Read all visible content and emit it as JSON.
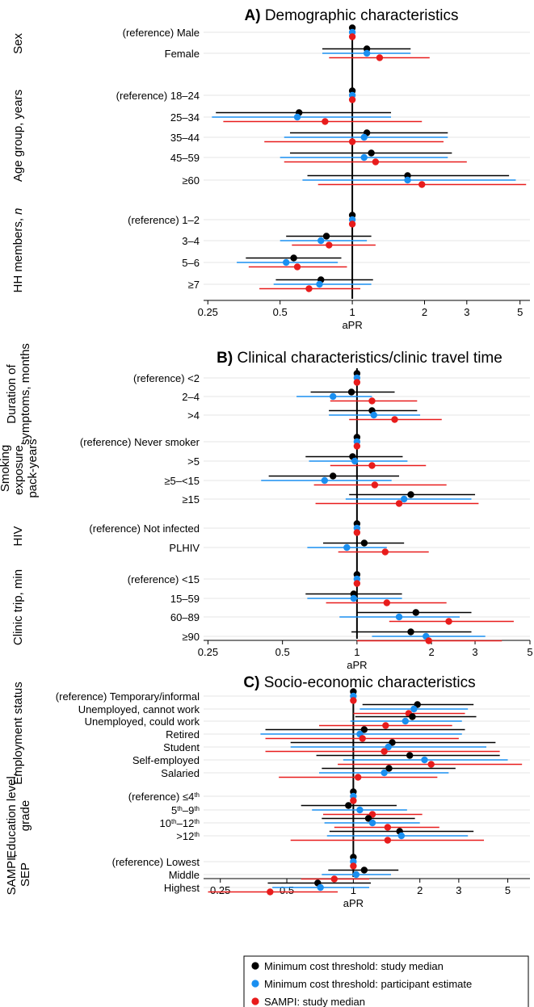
{
  "legend": {
    "items": [
      {
        "label": "Minimum cost threshold: study median",
        "color": "#000000"
      },
      {
        "label": "Minimum cost threshold: participant estimate",
        "color": "#1a8ff0"
      },
      {
        "label": "SAMPI: study median",
        "color": "#e81c1c"
      }
    ]
  },
  "chart_data": [
    {
      "type": "forest",
      "panel_letter": "A)",
      "title": "Demographic characteristics",
      "xlabel": "aPR",
      "x_scale": "log",
      "reference_value": 1,
      "xlim": [
        0.24,
        5.5
      ],
      "xticks": [
        0.25,
        0.5,
        1,
        2,
        3,
        5
      ],
      "xtick_labels": [
        "0.25",
        "0.5",
        "1",
        "2",
        "3",
        "5"
      ],
      "series_names": [
        "Minimum cost threshold: study median",
        "Minimum cost threshold: participant estimate",
        "SAMPI: study median"
      ],
      "groups": [
        {
          "label": "Sex",
          "rows": [
            {
              "label": "(reference) Male",
              "estimates": [
                [
                  1,
                  1,
                  1
                ],
                [
                  1,
                  1,
                  1
                ],
                [
                  1,
                  1,
                  1
                ]
              ]
            },
            {
              "label": "Female",
              "estimates": [
                [
                  1.15,
                  0.75,
                  1.75
                ],
                [
                  1.15,
                  0.75,
                  1.75
                ],
                [
                  1.3,
                  0.8,
                  2.1
                ]
              ]
            }
          ]
        },
        {
          "label": "Age group, years",
          "rows": [
            {
              "label": "(reference) 18–24",
              "estimates": [
                [
                  1,
                  1,
                  1
                ],
                [
                  1,
                  1,
                  1
                ],
                [
                  1,
                  1,
                  1
                ]
              ]
            },
            {
              "label": "25–34",
              "estimates": [
                [
                  0.6,
                  0.27,
                  1.45
                ],
                [
                  0.59,
                  0.26,
                  1.45
                ],
                [
                  0.77,
                  0.29,
                  1.95
                ]
              ]
            },
            {
              "label": "35–44",
              "estimates": [
                [
                  1.15,
                  0.55,
                  2.5
                ],
                [
                  1.12,
                  0.52,
                  2.5
                ],
                [
                  1.0,
                  0.43,
                  2.4
                ]
              ]
            },
            {
              "label": "45–59",
              "estimates": [
                [
                  1.2,
                  0.55,
                  2.6
                ],
                [
                  1.12,
                  0.5,
                  2.5
                ],
                [
                  1.25,
                  0.52,
                  3.0
                ]
              ]
            },
            {
              "label": "≥60",
              "estimates": [
                [
                  1.7,
                  0.65,
                  4.5
                ],
                [
                  1.7,
                  0.62,
                  4.8
                ],
                [
                  1.95,
                  0.72,
                  5.3
                ]
              ]
            }
          ]
        },
        {
          "label": "HH members, n",
          "rows": [
            {
              "label": "(reference) 1–2",
              "estimates": [
                [
                  1,
                  1,
                  1
                ],
                [
                  1,
                  1,
                  1
                ],
                [
                  1,
                  1,
                  1
                ]
              ]
            },
            {
              "label": "3–4",
              "estimates": [
                [
                  0.78,
                  0.53,
                  1.2
                ],
                [
                  0.74,
                  0.5,
                  1.15
                ],
                [
                  0.8,
                  0.56,
                  1.25
                ]
              ]
            },
            {
              "label": "5–6",
              "estimates": [
                [
                  0.57,
                  0.36,
                  0.9
                ],
                [
                  0.53,
                  0.33,
                  0.87
                ],
                [
                  0.59,
                  0.37,
                  0.95
                ]
              ]
            },
            {
              "label": "≥7",
              "estimates": [
                [
                  0.74,
                  0.48,
                  1.22
                ],
                [
                  0.73,
                  0.47,
                  1.2
                ],
                [
                  0.66,
                  0.41,
                  1.08
                ]
              ]
            }
          ]
        }
      ]
    },
    {
      "type": "forest",
      "panel_letter": "B)",
      "title": "Clinical characteristics/clinic travel time",
      "xlabel": "aPR",
      "x_scale": "log",
      "reference_value": 1,
      "xlim": [
        0.24,
        5.0
      ],
      "xticks": [
        0.25,
        0.5,
        1,
        2,
        3,
        5
      ],
      "xtick_labels": [
        "0.25",
        "0.5",
        "1",
        "2",
        "3",
        "5"
      ],
      "series_names": [
        "Minimum cost threshold: study median",
        "Minimum cost threshold: participant estimate",
        "SAMPI: study median"
      ],
      "groups": [
        {
          "label": "Duration of symptoms, months",
          "rows": [
            {
              "label": "(reference) <2",
              "estimates": [
                [
                  1,
                  1,
                  1
                ],
                [
                  1,
                  1,
                  1
                ],
                [
                  1,
                  1,
                  1
                ]
              ]
            },
            {
              "label": "2–4",
              "estimates": [
                [
                  0.95,
                  0.65,
                  1.42
                ],
                [
                  0.8,
                  0.57,
                  1.15
                ],
                [
                  1.15,
                  0.78,
                  1.75
                ]
              ]
            },
            {
              "label": ">4",
              "estimates": [
                [
                  1.15,
                  0.77,
                  1.75
                ],
                [
                  1.17,
                  0.77,
                  1.8
                ],
                [
                  1.42,
                  0.93,
                  2.2
                ]
              ]
            }
          ]
        },
        {
          "label": "Smoking exposure, pack-years",
          "rows": [
            {
              "label": "(reference) Never smoker",
              "estimates": [
                [
                  1,
                  1,
                  1
                ],
                [
                  1,
                  1,
                  1
                ],
                [
                  1,
                  1,
                  1
                ]
              ]
            },
            {
              "label": ">5",
              "estimates": [
                [
                  0.96,
                  0.62,
                  1.53
                ],
                [
                  0.98,
                  0.64,
                  1.6
                ],
                [
                  1.15,
                  0.78,
                  1.9
                ]
              ]
            },
            {
              "label": "≥5–<15",
              "estimates": [
                [
                  0.8,
                  0.44,
                  1.48
                ],
                [
                  0.74,
                  0.41,
                  1.38
                ],
                [
                  1.18,
                  0.67,
                  2.3
                ]
              ]
            },
            {
              "label": "≥15",
              "estimates": [
                [
                  1.65,
                  0.93,
                  3.0
                ],
                [
                  1.55,
                  0.9,
                  2.9
                ],
                [
                  1.48,
                  0.68,
                  3.1
                ]
              ]
            }
          ]
        },
        {
          "label": "HIV",
          "rows": [
            {
              "label": "(reference) Not infected",
              "estimates": [
                [
                  1,
                  1,
                  1
                ],
                [
                  1,
                  1,
                  1
                ],
                [
                  1,
                  1,
                  1
                ]
              ]
            },
            {
              "label": "PLHIV",
              "estimates": [
                [
                  1.07,
                  0.73,
                  1.55
                ],
                [
                  0.91,
                  0.63,
                  1.32
                ],
                [
                  1.3,
                  0.84,
                  1.95
                ]
              ]
            }
          ]
        },
        {
          "label": "Clinic trip, min",
          "rows": [
            {
              "label": "(reference) <15",
              "estimates": [
                [
                  1,
                  1,
                  1
                ],
                [
                  1,
                  1,
                  1
                ],
                [
                  1,
                  1,
                  1
                ]
              ]
            },
            {
              "label": "15–59",
              "estimates": [
                [
                  0.97,
                  0.62,
                  1.52
                ],
                [
                  0.97,
                  0.63,
                  1.52
                ],
                [
                  1.32,
                  0.75,
                  2.3
                ]
              ]
            },
            {
              "label": "60–89",
              "estimates": [
                [
                  1.73,
                  1.0,
                  2.9
                ],
                [
                  1.48,
                  0.85,
                  2.6
                ],
                [
                  2.35,
                  1.35,
                  4.3
                ]
              ]
            },
            {
              "label": "≥90",
              "estimates": [
                [
                  1.65,
                  0.95,
                  2.9
                ],
                [
                  1.9,
                  1.15,
                  3.3
                ],
                [
                  1.95,
                  1.0,
                  3.85
                ]
              ]
            }
          ]
        }
      ]
    },
    {
      "type": "forest",
      "panel_letter": "C)",
      "title": "Socio-economic characteristics",
      "xlabel": "aPR",
      "x_scale": "log",
      "reference_value": 1,
      "xlim": [
        0.21,
        6.3
      ],
      "xticks": [
        0.25,
        0.5,
        1,
        2,
        3,
        5
      ],
      "xtick_labels": [
        "0.25",
        "0.5",
        "1",
        "2",
        "3",
        "5"
      ],
      "series_names": [
        "Minimum cost threshold: study median",
        "Minimum cost threshold: participant estimate",
        "SAMPI: study median"
      ],
      "groups": [
        {
          "label": "Employment status",
          "rows": [
            {
              "label": "(reference) Temporary/informal",
              "estimates": [
                [
                  1,
                  1,
                  1
                ],
                [
                  1,
                  1,
                  1
                ],
                [
                  1,
                  1,
                  1
                ]
              ]
            },
            {
              "label": "Unemployed, cannot work",
              "estimates": [
                [
                  1.95,
                  1.1,
                  3.5
                ],
                [
                  1.88,
                  1.07,
                  3.3
                ],
                [
                  1.78,
                  1.0,
                  3.2
                ]
              ]
            },
            {
              "label": "Unemployed, could work",
              "estimates": [
                [
                  1.85,
                  1.02,
                  3.6
                ],
                [
                  1.72,
                  0.97,
                  3.1
                ],
                [
                  1.4,
                  0.7,
                  2.8
                ]
              ]
            },
            {
              "label": "Retired",
              "estimates": [
                [
                  1.12,
                  0.4,
                  3.2
                ],
                [
                  1.07,
                  0.38,
                  3.1
                ],
                [
                  1.1,
                  0.4,
                  3.0
                ]
              ]
            },
            {
              "label": "Student",
              "estimates": [
                [
                  1.5,
                  0.52,
                  4.4
                ],
                [
                  1.44,
                  0.52,
                  4.0
                ],
                [
                  1.38,
                  0.4,
                  4.6
                ]
              ]
            },
            {
              "label": "Self-employed",
              "estimates": [
                [
                  1.8,
                  0.68,
                  4.6
                ],
                [
                  2.1,
                  0.9,
                  5.0
                ],
                [
                  2.25,
                  0.85,
                  5.8
                ]
              ]
            },
            {
              "label": "Salaried",
              "estimates": [
                [
                  1.45,
                  0.72,
                  2.9
                ],
                [
                  1.38,
                  0.7,
                  2.7
                ],
                [
                  1.05,
                  0.46,
                  2.4
                ]
              ]
            }
          ]
        },
        {
          "label": "Education level, grade",
          "rows": [
            {
              "label": "(reference) ≤4th",
              "estimates": [
                [
                  1,
                  1,
                  1
                ],
                [
                  1,
                  1,
                  1
                ],
                [
                  1,
                  1,
                  1
                ]
              ]
            },
            {
              "label": "5th–9th",
              "estimates": [
                [
                  0.95,
                  0.58,
                  1.57
                ],
                [
                  1.07,
                  0.65,
                  1.75
                ],
                [
                  1.22,
                  0.73,
                  2.05
                ]
              ]
            },
            {
              "label": "10th–12th",
              "estimates": [
                [
                  1.17,
                  0.72,
                  1.9
                ],
                [
                  1.22,
                  0.74,
                  2.0
                ],
                [
                  1.43,
                  0.82,
                  2.45
                ]
              ]
            },
            {
              "label": ">12th",
              "estimates": [
                [
                  1.62,
                  0.78,
                  3.5
                ],
                [
                  1.65,
                  0.76,
                  3.3
                ],
                [
                  1.43,
                  0.52,
                  3.9
                ]
              ]
            }
          ]
        },
        {
          "label": "SAMPI, SEP",
          "rows": [
            {
              "label": "(reference) Lowest",
              "estimates": [
                [
                  1,
                  1,
                  1
                ],
                [
                  1,
                  1,
                  1
                ],
                [
                  1,
                  1,
                  1
                ]
              ]
            },
            {
              "label": "Middle",
              "estimates": [
                [
                  1.12,
                  0.77,
                  1.6
                ],
                [
                  1.03,
                  0.72,
                  1.48
                ],
                [
                  0.82,
                  0.58,
                  1.18
                ]
              ]
            },
            {
              "label": "Highest",
              "estimates": [
                [
                  0.69,
                  0.41,
                  1.2
                ],
                [
                  0.71,
                  0.43,
                  1.18
                ],
                [
                  0.42,
                  0.22,
                  0.85
                ]
              ]
            }
          ]
        }
      ]
    }
  ]
}
